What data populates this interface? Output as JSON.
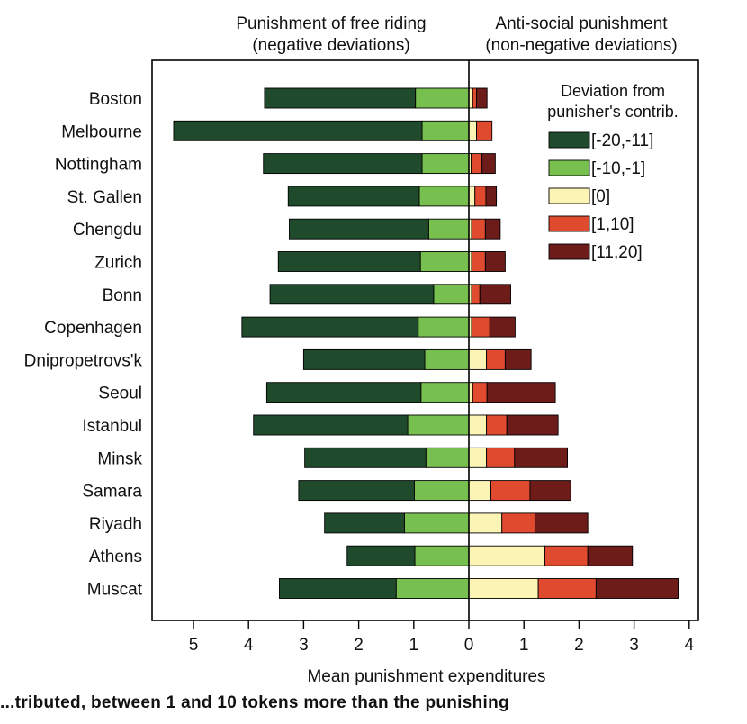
{
  "chart_data": {
    "type": "bar",
    "orientation": "horizontal-diverging",
    "header_left": [
      "Punishment of free riding",
      "(negative deviations)"
    ],
    "header_right": [
      "Anti-social punishment",
      "(non-negative deviations)"
    ],
    "xlabel": "Mean punishment expenditures",
    "xlim": [
      -5.8,
      4.1
    ],
    "xticks": [
      -5,
      -4,
      -3,
      -2,
      -1,
      0,
      1,
      2,
      3,
      4
    ],
    "xtick_labels": [
      "5",
      "4",
      "3",
      "2",
      "1",
      "0",
      "1",
      "2",
      "3",
      "4"
    ],
    "categories": [
      "Boston",
      "Melbourne",
      "Nottingham",
      "St. Gallen",
      "Chengdu",
      "Zurich",
      "Bonn",
      "Copenhagen",
      "Dnipropetrovs'k",
      "Seoul",
      "Istanbul",
      "Minsk",
      "Samara",
      "Riyadh",
      "Athens",
      "Muscat"
    ],
    "legend": {
      "title": [
        "Deviation from",
        "punisher's contrib."
      ],
      "position": "top-right"
    },
    "series": [
      {
        "name": "[-20,-11]",
        "side": "negative",
        "color": "#1f4b2c",
        "values": [
          2.74,
          4.51,
          2.88,
          2.38,
          2.53,
          2.58,
          2.97,
          3.2,
          2.2,
          2.8,
          2.8,
          2.2,
          2.1,
          1.45,
          1.23,
          2.12
        ]
      },
      {
        "name": "[-10,-1]",
        "side": "negative",
        "color": "#77bf4f",
        "values": [
          0.97,
          0.85,
          0.85,
          0.9,
          0.73,
          0.88,
          0.64,
          0.92,
          0.8,
          0.87,
          1.11,
          0.78,
          0.99,
          1.17,
          0.98,
          1.32
        ]
      },
      {
        "name": "[0]",
        "side": "positive",
        "color": "#fbf4b4",
        "values": [
          0.07,
          0.14,
          0.04,
          0.11,
          0.05,
          0.05,
          0.05,
          0.05,
          0.32,
          0.07,
          0.32,
          0.32,
          0.4,
          0.6,
          1.38,
          1.26
        ]
      },
      {
        "name": "[1,10]",
        "side": "positive",
        "color": "#e04a2e",
        "values": [
          0.07,
          0.28,
          0.2,
          0.2,
          0.25,
          0.25,
          0.15,
          0.33,
          0.34,
          0.26,
          0.37,
          0.51,
          0.71,
          0.6,
          0.78,
          1.05
        ]
      },
      {
        "name": "[11,20]",
        "side": "positive",
        "color": "#6d1c1a",
        "values": [
          0.19,
          0.0,
          0.24,
          0.19,
          0.27,
          0.36,
          0.56,
          0.46,
          0.47,
          1.24,
          0.93,
          0.96,
          0.74,
          0.96,
          0.81,
          1.49
        ]
      }
    ]
  },
  "caption_fragment": "...tributed, between 1 and 10 tokens more than the punishing"
}
